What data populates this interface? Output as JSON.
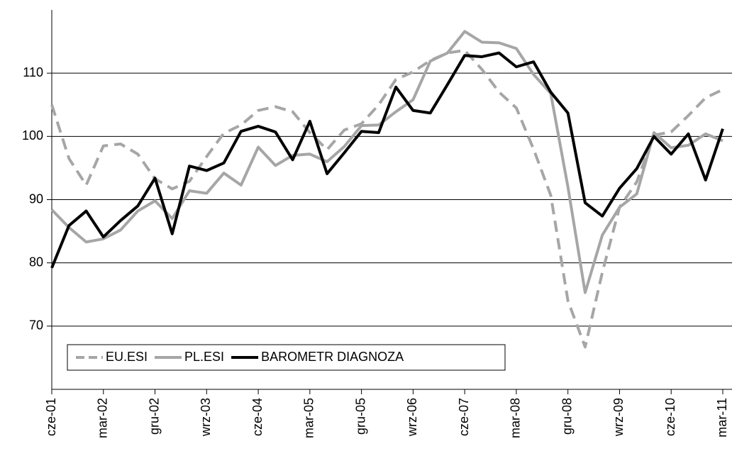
{
  "chart_data": {
    "type": "line",
    "categories": [
      "cze-01",
      null,
      null,
      "mar-02",
      null,
      null,
      "gru-02",
      null,
      null,
      "wrz-03",
      null,
      null,
      "cze-04",
      null,
      null,
      "mar-05",
      null,
      null,
      "gru-05",
      null,
      null,
      "wrz-06",
      null,
      null,
      "cze-07",
      null,
      null,
      "mar-08",
      null,
      null,
      "gru-08",
      null,
      null,
      "wrz-09",
      null,
      null,
      "cze-10",
      null,
      null,
      "mar-11"
    ],
    "series": [
      {
        "name": "EU.ESI",
        "color": "#a6a6a6",
        "dash": true,
        "values": [
          105,
          96.5,
          92.3,
          98.5,
          98.8,
          97.2,
          93.3,
          91.7,
          92.9,
          96.8,
          100.5,
          101.8,
          104.1,
          104.7,
          103.9,
          100.6,
          97.9,
          101.0,
          102.0,
          105.0,
          109.0,
          110.2,
          112.0,
          113.2,
          113.6,
          110.6,
          107.0,
          104.5,
          98.0,
          90.7,
          74.0,
          66.7,
          78.5,
          88.8,
          92.8,
          100.2,
          100.7,
          103.3,
          106.1,
          107.4
        ]
      },
      {
        "name": "PL.ESI",
        "color": "#a6a6a6",
        "dash": false,
        "values": [
          88.4,
          85.6,
          83.3,
          83.8,
          85.2,
          88.2,
          89.8,
          87.0,
          91.4,
          91.0,
          94.2,
          92.3,
          98.3,
          95.4,
          97.0,
          97.2,
          96.0,
          98.4,
          101.7,
          101.8,
          103.9,
          105.8,
          111.9,
          113.2,
          116.6,
          114.9,
          114.8,
          113.9,
          109.8,
          106.8,
          92.0,
          75.3,
          84.4,
          88.8,
          90.9,
          100.6,
          98.2,
          98.6,
          100.4,
          99.3
        ]
      },
      {
        "name": "BAROMETR DIAGNOZA",
        "color": "#000000",
        "dash": false,
        "values": [
          79.2,
          85.9,
          88.2,
          84.1,
          86.7,
          89.0,
          93.4,
          84.6,
          95.3,
          94.6,
          95.8,
          100.8,
          101.6,
          100.7,
          96.3,
          102.4,
          94.1,
          97.4,
          100.8,
          100.6,
          107.8,
          104.1,
          103.7,
          108.2,
          112.8,
          112.6,
          113.2,
          111.0,
          111.8,
          107.0,
          103.7,
          89.5,
          87.4,
          91.8,
          94.9,
          100.0,
          97.2,
          100.4,
          93.1,
          101.2
        ]
      }
    ],
    "ylim": [
      60,
      120
    ],
    "yticks": [
      70,
      80,
      90,
      100,
      110
    ],
    "grid": true,
    "legend": "lower left"
  }
}
